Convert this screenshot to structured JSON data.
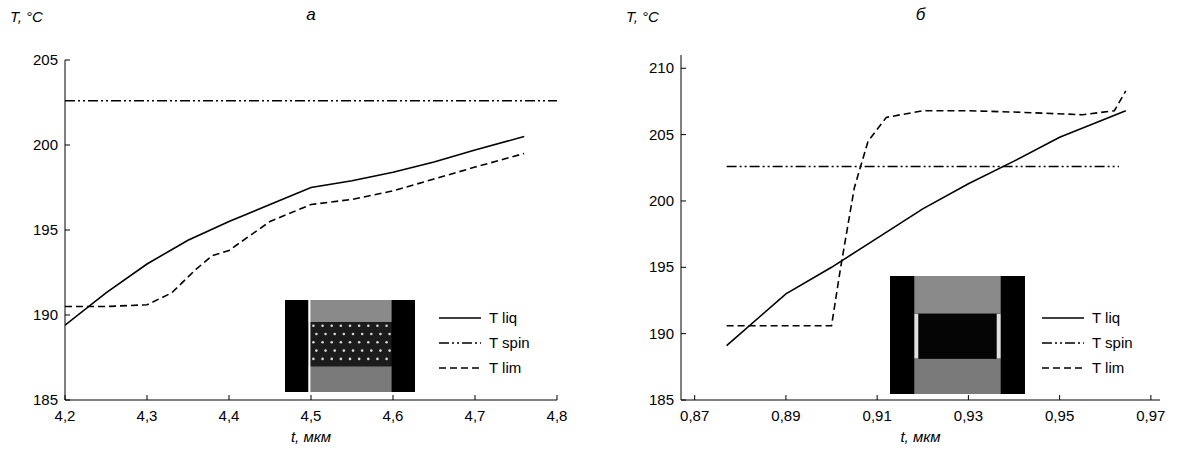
{
  "chart_data": [
    {
      "type": "line",
      "title": "а",
      "x_label": "t, мкм",
      "y_label": "T, °C",
      "xlim": [
        4.2,
        4.8
      ],
      "ylim": [
        185,
        205
      ],
      "xticks": [
        {
          "value": 4.2,
          "label": "4,2"
        },
        {
          "value": 4.3,
          "label": "4,3"
        },
        {
          "value": 4.4,
          "label": "4,4"
        },
        {
          "value": 4.5,
          "label": "4,5"
        },
        {
          "value": 4.6,
          "label": "4,6"
        },
        {
          "value": 4.7,
          "label": "4,7"
        },
        {
          "value": 4.8,
          "label": "4,8"
        }
      ],
      "yticks": [
        185,
        190,
        195,
        200,
        205
      ],
      "legend": "lower right",
      "series": [
        {
          "name": "T liq",
          "color": "#000000",
          "line_style": "solid",
          "x": [
            4.2,
            4.25,
            4.3,
            4.35,
            4.4,
            4.45,
            4.5,
            4.55,
            4.6,
            4.65,
            4.7,
            4.76
          ],
          "values": [
            189.4,
            191.3,
            193.0,
            194.4,
            195.5,
            196.5,
            197.5,
            197.9,
            198.4,
            199.0,
            199.7,
            200.5
          ]
        },
        {
          "name": "T spin",
          "color": "#000000",
          "line_style": "dashdotdot",
          "x": [
            4.2,
            4.8
          ],
          "values": [
            202.6,
            202.6
          ]
        },
        {
          "name": "T lim",
          "color": "#000000",
          "line_style": "dashed",
          "x": [
            4.2,
            4.25,
            4.3,
            4.33,
            4.36,
            4.38,
            4.4,
            4.45,
            4.5,
            4.55,
            4.6,
            4.65,
            4.7,
            4.76
          ],
          "values": [
            190.5,
            190.5,
            190.6,
            191.3,
            192.7,
            193.5,
            193.8,
            195.5,
            196.5,
            196.8,
            197.3,
            198.0,
            198.7,
            199.5
          ]
        }
      ]
    },
    {
      "type": "line",
      "title": "б",
      "x_label": "t, мкм",
      "y_label": "T, °C",
      "xlim": [
        0.867,
        0.972
      ],
      "ylim": [
        185,
        211
      ],
      "xticks": [
        {
          "value": 0.87,
          "label": "0,87"
        },
        {
          "value": 0.89,
          "label": "0,89"
        },
        {
          "value": 0.91,
          "label": "0,91"
        },
        {
          "value": 0.93,
          "label": "0,93"
        },
        {
          "value": 0.95,
          "label": "0,95"
        },
        {
          "value": 0.97,
          "label": "0,97"
        }
      ],
      "yticks": [
        185,
        190,
        195,
        200,
        205,
        210
      ],
      "legend": "lower right",
      "series": [
        {
          "name": "T liq",
          "color": "#000000",
          "line_style": "solid",
          "x": [
            0.877,
            0.89,
            0.9,
            0.91,
            0.92,
            0.93,
            0.94,
            0.95,
            0.9645
          ],
          "values": [
            189.1,
            193.0,
            195.0,
            197.2,
            199.4,
            201.3,
            203.0,
            204.8,
            206.8
          ]
        },
        {
          "name": "T spin",
          "color": "#000000",
          "line_style": "dashdotdot",
          "x": [
            0.877,
            0.963
          ],
          "values": [
            202.6,
            202.6
          ]
        },
        {
          "name": "T lim",
          "color": "#000000",
          "line_style": "dashed",
          "x": [
            0.877,
            0.89,
            0.9,
            0.902,
            0.905,
            0.908,
            0.912,
            0.92,
            0.93,
            0.94,
            0.955,
            0.962,
            0.9645
          ],
          "values": [
            190.6,
            190.6,
            190.6,
            195.0,
            201.0,
            204.5,
            206.3,
            206.8,
            206.8,
            206.7,
            206.5,
            206.8,
            208.3
          ]
        }
      ]
    }
  ]
}
